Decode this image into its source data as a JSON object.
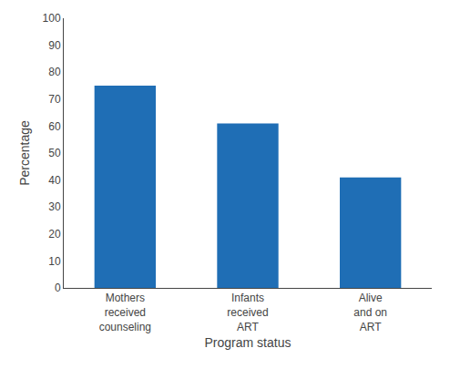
{
  "chart_data": {
    "type": "bar",
    "categories": [
      "Mothers\nreceived\ncounseling",
      "Infants\nreceived\nART",
      "Alive\nand on\nART"
    ],
    "values": [
      75,
      61,
      41
    ],
    "color": "#1F6EB5",
    "xlabel": "Program status",
    "ylabel": "Percentage",
    "ylim": [
      0,
      100
    ],
    "yticks": [
      0,
      10,
      20,
      30,
      40,
      50,
      60,
      70,
      80,
      90,
      100
    ],
    "grid": false
  }
}
